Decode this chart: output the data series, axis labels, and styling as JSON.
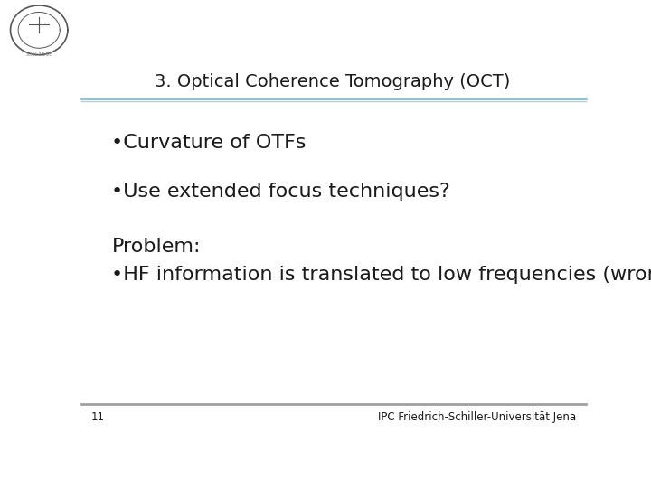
{
  "title": "3. Optical Coherence Tomography (OCT)",
  "bullet1": "•Curvature of OTFs",
  "bullet2": "•Use extended focus techniques?",
  "problem_label": "Problem:",
  "bullet3": "•HF information is translated to low frequencies (wrong)",
  "page_number": "11",
  "footer_text": "IPC Friedrich-Schiller-Universität Jena",
  "bg_color": "#ffffff",
  "title_color": "#1a1a1a",
  "text_color": "#1a1a1a",
  "title_fontsize": 14,
  "body_fontsize": 16,
  "footer_fontsize": 8.5,
  "header_line_color1": "#8bb8c8",
  "header_line_color2": "#b8ccd4",
  "footer_line_color": "#a0a0a0",
  "logo_text": "acit 1558"
}
